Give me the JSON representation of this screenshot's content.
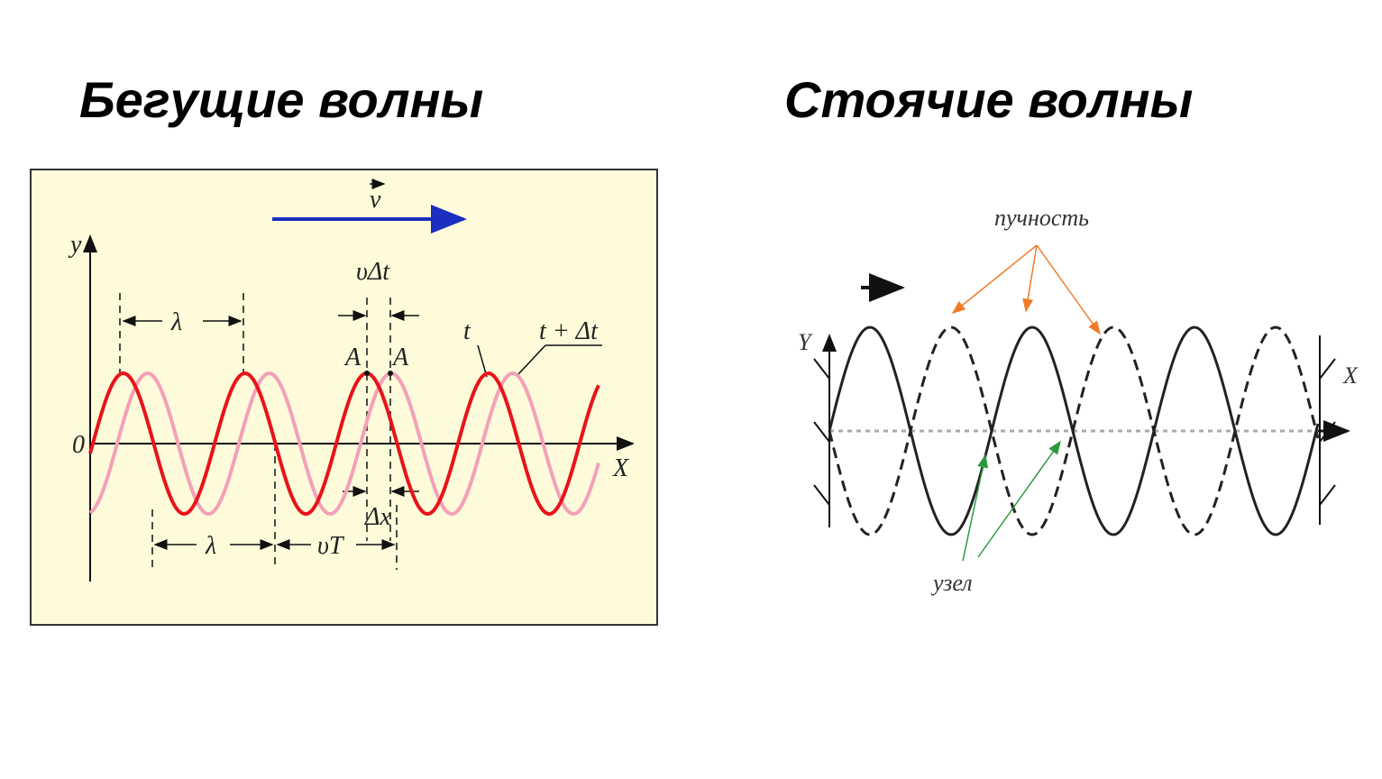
{
  "titles": {
    "traveling": "Бегущие волны",
    "standing": "Стоячие волны"
  },
  "traveling_diagram": {
    "velocity": "v",
    "y_axis": "y",
    "x_axis": "X",
    "origin": "0",
    "wavelength_top": "λ",
    "shift": "υΔt",
    "time_t": "t",
    "time_t_dt": "t + Δt",
    "point_a1": "A",
    "point_a2": "A",
    "delta_x": "Δx",
    "wavelength_bottom": "λ",
    "distance": "υT"
  },
  "standing_diagram": {
    "antinode": "пучность",
    "y_axis": "Y",
    "x_axis": "X",
    "node": "узел"
  }
}
